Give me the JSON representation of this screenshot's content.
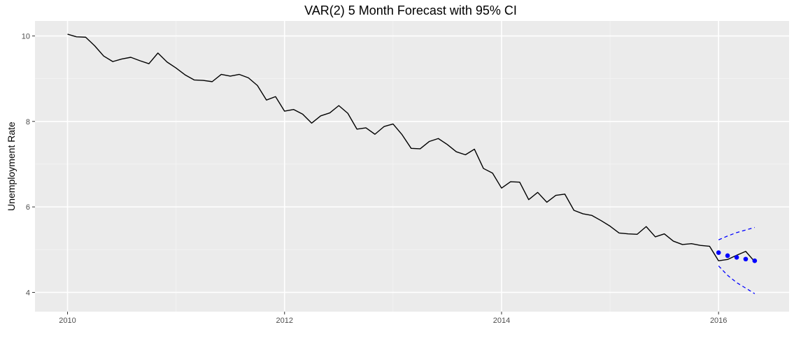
{
  "chart_data": {
    "type": "line",
    "title": "VAR(2) 5 Month Forecast with 95% CI",
    "xlabel": "",
    "ylabel": "Unemployment Rate",
    "xlim": [
      2009.7,
      2016.65
    ],
    "ylim": [
      3.55,
      10.35
    ],
    "x_ticks": [
      2010,
      2012,
      2014,
      2016
    ],
    "y_ticks": [
      4,
      6,
      8,
      10
    ],
    "grid": true,
    "background": "#ebebeb",
    "colors": {
      "actual": "#000000",
      "forecast": "#0000ff",
      "ci": "#0000ff"
    },
    "series": [
      {
        "kind": "line",
        "x": [
          2010.0,
          2010.083,
          2010.167,
          2010.25,
          2010.333,
          2010.417,
          2010.5,
          2010.583,
          2010.667,
          2010.75,
          2010.833,
          2010.917,
          2011.0,
          2011.083,
          2011.167,
          2011.25,
          2011.333,
          2011.417,
          2011.5,
          2011.583,
          2011.667,
          2011.75,
          2011.833,
          2011.917,
          2012.0,
          2012.083,
          2012.167,
          2012.25,
          2012.333,
          2012.417,
          2012.5,
          2012.583,
          2012.667,
          2012.75,
          2012.833,
          2012.917,
          2013.0,
          2013.083,
          2013.167,
          2013.25,
          2013.333,
          2013.417,
          2013.5,
          2013.583,
          2013.667,
          2013.75,
          2013.833,
          2013.917,
          2014.0,
          2014.083,
          2014.167,
          2014.25,
          2014.333,
          2014.417,
          2014.5,
          2014.583,
          2014.667,
          2014.75,
          2014.833,
          2014.917,
          2015.0,
          2015.083,
          2015.167,
          2015.25,
          2015.333,
          2015.417,
          2015.5,
          2015.583,
          2015.667,
          2015.75,
          2015.833,
          2015.917,
          2016.0,
          2016.083,
          2016.167,
          2016.25,
          2016.333
        ],
        "y": [
          10.04,
          9.98,
          9.97,
          9.77,
          9.53,
          9.4,
          9.46,
          9.5,
          9.42,
          9.35,
          9.6,
          9.39,
          9.25,
          9.09,
          8.97,
          8.96,
          8.93,
          9.1,
          9.06,
          9.1,
          9.02,
          8.84,
          8.5,
          8.58,
          8.24,
          8.28,
          8.17,
          7.96,
          8.13,
          8.2,
          8.37,
          8.19,
          7.82,
          7.85,
          7.7,
          7.88,
          7.94,
          7.69,
          7.37,
          7.36,
          7.53,
          7.6,
          7.46,
          7.29,
          7.22,
          7.35,
          6.9,
          6.79,
          6.44,
          6.59,
          6.58,
          6.17,
          6.34,
          6.11,
          6.27,
          6.3,
          5.92,
          5.84,
          5.8,
          5.68,
          5.55,
          5.39,
          5.37,
          5.36,
          5.54,
          5.3,
          5.37,
          5.2,
          5.12,
          5.14,
          5.1,
          5.08,
          4.74,
          4.77,
          4.87,
          4.96,
          4.72
        ]
      },
      {
        "kind": "points",
        "x": [
          2016.0,
          2016.083,
          2016.167,
          2016.25,
          2016.333
        ],
        "y": [
          4.93,
          4.86,
          4.82,
          4.78,
          4.74
        ]
      },
      {
        "kind": "dashed",
        "x": [
          2016.0,
          2016.083,
          2016.167,
          2016.25,
          2016.333
        ],
        "y": [
          5.23,
          5.32,
          5.4,
          5.46,
          5.52
        ]
      },
      {
        "kind": "dashed",
        "x": [
          2016.0,
          2016.083,
          2016.167,
          2016.25,
          2016.333
        ],
        "y": [
          4.62,
          4.4,
          4.23,
          4.1,
          3.97
        ]
      }
    ]
  }
}
